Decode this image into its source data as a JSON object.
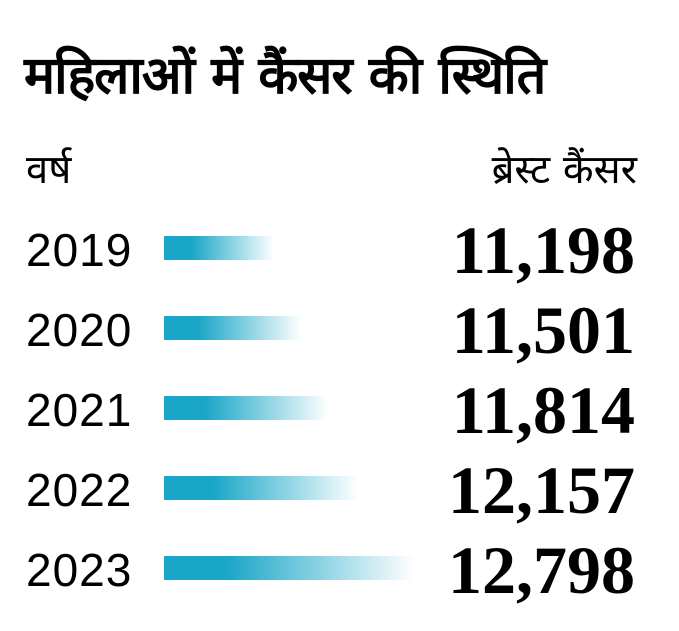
{
  "chart_data": {
    "type": "bar",
    "orientation": "horizontal",
    "title": "महिलाओं में कैंसर की स्थिति",
    "category_header": "वर्ष",
    "value_header": "ब्रेस्ट कैंसर",
    "categories": [
      "2019",
      "2020",
      "2021",
      "2022",
      "2023"
    ],
    "values": [
      11198,
      11501,
      11814,
      12157,
      12798
    ],
    "value_labels": [
      "11,198",
      "11,501",
      "11,814",
      "12,157",
      "12,798"
    ],
    "bar_color": "#1aa6c7"
  }
}
